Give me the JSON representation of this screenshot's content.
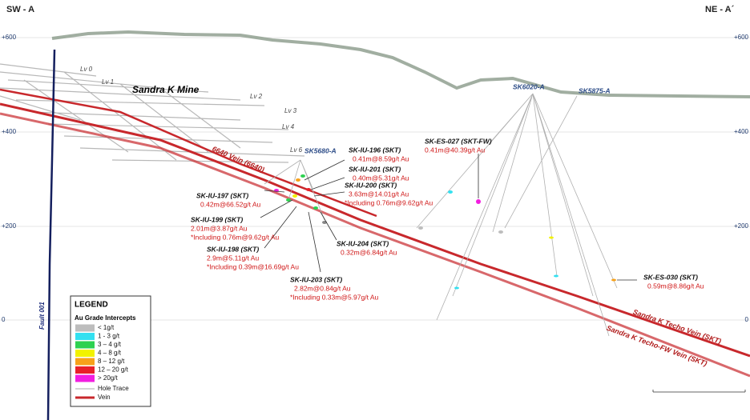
{
  "header": {
    "left": "SW - A",
    "right": "NE - A´"
  },
  "elevations": {
    "left": [
      "+600",
      "+400",
      "+200",
      "0"
    ],
    "right": [
      "+600",
      "+400",
      "+200",
      "0"
    ]
  },
  "mine": {
    "title": "Sandra K Mine",
    "levels": [
      "Lv 0",
      "Lv 1",
      "Lv 2",
      "Lv 3",
      "Lv 4",
      "Lv 6"
    ]
  },
  "collars": [
    "SK5680-A",
    "SK6020-A",
    "SK5875-A"
  ],
  "fault": "Fault 001",
  "veins": [
    "6640 Vein (6640)",
    "Sandra K Techo Vein (SKT)",
    "Sandra K Techo-FW Vein (SKT)"
  ],
  "intercepts": [
    {
      "hole": "SK-IU-196 (SKT)",
      "lines": [
        "0.41m@8.59g/t Au"
      ]
    },
    {
      "hole": "SK-IU-201 (SKT)",
      "lines": [
        "0.40m@5.31g/t Au"
      ]
    },
    {
      "hole": "SK-IU-200 (SKT)",
      "lines": [
        "3.63m@14.01g/t Au",
        "*Including 0.76m@9.62g/t Au"
      ]
    },
    {
      "hole": "SK-IU-197 (SKT)",
      "lines": [
        "0.42m@66.52g/t Au"
      ]
    },
    {
      "hole": "SK-IU-199 (SKT)",
      "lines": [
        "2.01m@3.87g/t Au",
        "*Including 0.76m@9.62g/t Au"
      ]
    },
    {
      "hole": "SK-IU-198 (SKT)",
      "lines": [
        "2.9m@5.11g/t Au",
        "*Including 0.39m@16.69g/t Au"
      ]
    },
    {
      "hole": "SK-IU-204 (SKT)",
      "lines": [
        "0.32m@6.84g/t Au"
      ]
    },
    {
      "hole": "SK-IU-203 (SKT)",
      "lines": [
        "2.82m@0.84g/t Au",
        "*Including 0.33m@5.97g/t Au"
      ]
    },
    {
      "hole": "SK-ES-027 (SKT-FW)",
      "lines": [
        "0.41m@40.39g/t Au"
      ]
    },
    {
      "hole": "SK-ES-030 (SKT)",
      "lines": [
        "0.59m@8.86g/t Au"
      ]
    }
  ],
  "legend": {
    "title": "LEGEND",
    "subtitle": "Au Grade Intercepts",
    "grades": [
      {
        "label": "< 1g/t",
        "color": "#bdbdbd"
      },
      {
        "label": "1 - 3 g/t",
        "color": "#33e0f0"
      },
      {
        "label": "3 – 4 g/t",
        "color": "#2ed150"
      },
      {
        "label": "4 – 8 g/t",
        "color": "#f2f200"
      },
      {
        "label": "8 – 12 g/t",
        "color": "#f7a11a"
      },
      {
        "label": "12 – 20 g/t",
        "color": "#e8202a"
      },
      {
        "label": "> 20g/t",
        "color": "#f21ee0"
      }
    ],
    "hole_trace": "Hole Trace",
    "vein": "Vein"
  }
}
